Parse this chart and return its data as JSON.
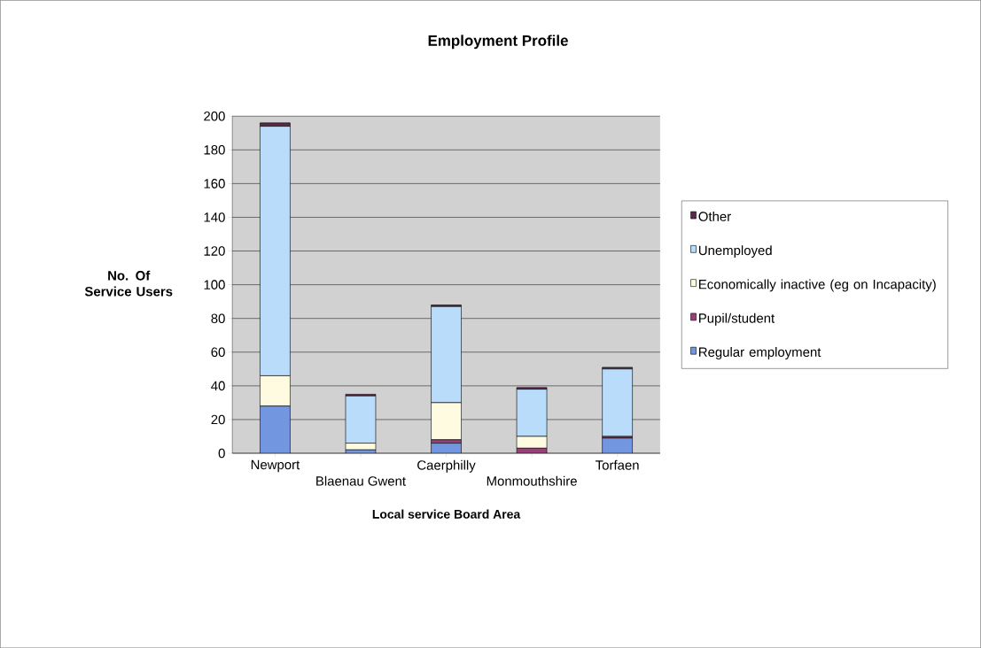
{
  "chart_data": {
    "type": "bar",
    "stacked": true,
    "title": "Employment Profile",
    "xlabel": "Local service Board Area",
    "ylabel": "No. Of Service Users",
    "categories": [
      "Newport",
      "Blaenau Gwent",
      "Caerphilly",
      "Monmouthshire",
      "Torfaen"
    ],
    "series": [
      {
        "name": "Regular employment",
        "color": "#7396e0",
        "values": [
          28,
          2,
          6,
          0,
          9
        ]
      },
      {
        "name": "Pupil/student",
        "color": "#9a3f7a",
        "values": [
          0,
          0,
          2,
          3,
          1
        ]
      },
      {
        "name": "Economically inactive (eg on Incapacity)",
        "color": "#fffbe0",
        "values": [
          18,
          4,
          22,
          7,
          0
        ]
      },
      {
        "name": "Unemployed",
        "color": "#b9dcfa",
        "values": [
          148,
          28,
          57,
          28,
          40
        ]
      },
      {
        "name": "Other",
        "color": "#5a2a4a",
        "values": [
          2,
          1,
          1,
          1,
          1
        ]
      }
    ],
    "ylim": [
      0,
      200
    ],
    "yticks": [
      0,
      20,
      40,
      60,
      80,
      100,
      120,
      140,
      160,
      180,
      200
    ],
    "grid": "y",
    "legend": "right"
  }
}
